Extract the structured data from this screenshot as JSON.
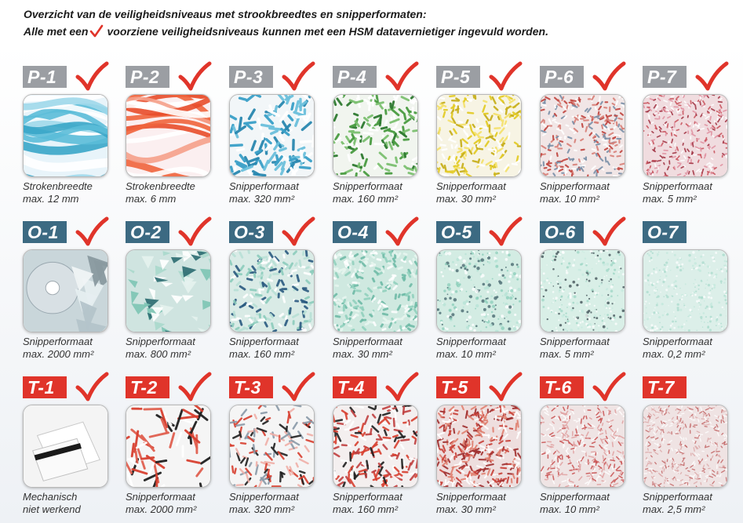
{
  "intro": {
    "line1": "Overzicht van de veiligheidsniveaus met strookbreedtes en snipperformaten:",
    "line2_before": "Alle met een",
    "line2_after": "voorziene veiligheidsniveaus kunnen met een HSM datavernietiger ingevuld worden."
  },
  "colors": {
    "p_badge": "#9b9ea3",
    "o_badge": "#3c6a82",
    "t_badge": "#e0342a",
    "check": "#e0342a"
  },
  "rows": [
    {
      "series": "p",
      "items": [
        {
          "code": "P-1",
          "check": true,
          "line1": "Strokenbreedte",
          "line2": "max. 12 mm",
          "texture": "strips-blue"
        },
        {
          "code": "P-2",
          "check": true,
          "line1": "Strokenbreedte",
          "line2": "max. 6 mm",
          "texture": "strips-orange"
        },
        {
          "code": "P-3",
          "check": true,
          "line1": "Snipperformaat",
          "line2": "max. 320 mm²",
          "texture": "chips-blue"
        },
        {
          "code": "P-4",
          "check": true,
          "line1": "Snipperformaat",
          "line2": "max. 160 mm²",
          "texture": "chips-green"
        },
        {
          "code": "P-5",
          "check": true,
          "line1": "Snipperformaat",
          "line2": "max. 30 mm²",
          "texture": "chips-yellow"
        },
        {
          "code": "P-6",
          "check": true,
          "line1": "Snipperformaat",
          "line2": "max. 10 mm²",
          "texture": "chips-red"
        },
        {
          "code": "P-7",
          "check": true,
          "line1": "Snipperformaat",
          "line2": "max. 5 mm²",
          "texture": "chips-red-fine"
        }
      ]
    },
    {
      "series": "o",
      "items": [
        {
          "code": "O-1",
          "check": true,
          "line1": "Snipperformaat",
          "line2": "max. 2000 mm²",
          "texture": "cd"
        },
        {
          "code": "O-2",
          "check": true,
          "line1": "Snipperformaat",
          "line2": "max. 800 mm²",
          "texture": "shards"
        },
        {
          "code": "O-3",
          "check": true,
          "line1": "Snipperformaat",
          "line2": "max. 160 mm²",
          "texture": "shards-small"
        },
        {
          "code": "O-4",
          "check": true,
          "line1": "Snipperformaat",
          "line2": "max. 30 mm²",
          "texture": "mint"
        },
        {
          "code": "O-5",
          "check": true,
          "line1": "Snipperformaat",
          "line2": "max. 10 mm²",
          "texture": "mint-fine"
        },
        {
          "code": "O-6",
          "check": true,
          "line1": "Snipperformaat",
          "line2": "max. 5 mm²",
          "texture": "mint-finer"
        },
        {
          "code": "O-7",
          "check": false,
          "line1": "Snipperformaat",
          "line2": "max. 0,2 mm²",
          "texture": "mint-finest"
        }
      ]
    },
    {
      "series": "t",
      "items": [
        {
          "code": "T-1",
          "check": true,
          "line1": "Mechanisch",
          "line2": "niet werkend",
          "texture": "card"
        },
        {
          "code": "T-2",
          "check": true,
          "line1": "Snipperformaat",
          "line2": "max. 2000 mm²",
          "texture": "sticks"
        },
        {
          "code": "T-3",
          "check": true,
          "line1": "Snipperformaat",
          "line2": "max. 320 mm²",
          "texture": "sticks-small"
        },
        {
          "code": "T-4",
          "check": true,
          "line1": "Snipperformaat",
          "line2": "max. 160 mm²",
          "texture": "sticks-med"
        },
        {
          "code": "T-5",
          "check": true,
          "line1": "Snipperformaat",
          "line2": "max. 30 mm²",
          "texture": "sticks-dense"
        },
        {
          "code": "T-6",
          "check": true,
          "line1": "Snipperformaat",
          "line2": "max. 10 mm²",
          "texture": "sticks-fine"
        },
        {
          "code": "T-7",
          "check": false,
          "line1": "Snipperformaat",
          "line2": "max. 2,5 mm²",
          "texture": "sticks-finest"
        }
      ]
    }
  ]
}
